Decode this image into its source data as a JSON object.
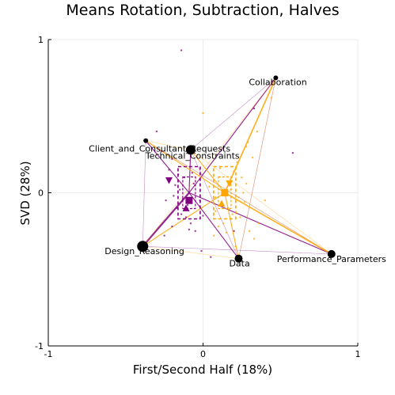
{
  "chart_data": {
    "type": "scatter",
    "title": "Means Rotation, Subtraction, Halves",
    "xlabel": "First/Second Half (18%)",
    "ylabel": "SVD (28%)",
    "xlim": [
      -1,
      1
    ],
    "ylim": [
      -1,
      1
    ],
    "xticks": [
      "-1",
      "0",
      "1"
    ],
    "yticks": [
      "-1",
      "0",
      "1"
    ],
    "grid": true,
    "legend": "none",
    "colors": {
      "first_half": "#800080",
      "second_half": "#FFA500",
      "nodes": "#000000"
    },
    "nodes": [
      {
        "label": "Collaboration",
        "x": 0.47,
        "y": 0.75
      },
      {
        "label": "Client_and_Consultant_Requests",
        "x": -0.37,
        "y": 0.34
      },
      {
        "label": "Technical_Constraints",
        "x": -0.08,
        "y": 0.28
      },
      {
        "label": "Design_Reasoning",
        "x": -0.39,
        "y": -0.35
      },
      {
        "label": "Data",
        "x": 0.23,
        "y": -0.43
      },
      {
        "label": "Performance_Parameters",
        "x": 0.83,
        "y": -0.4
      }
    ],
    "node_size": [
      3,
      3,
      6,
      7,
      5,
      5
    ],
    "series": [
      {
        "group": "first_half",
        "mean": [
          -0.09,
          0.0
        ],
        "markers": [
          {
            "shape": "triangle-down",
            "x": -0.22,
            "y": 0.08
          },
          {
            "shape": "triangle-up",
            "x": -0.11,
            "y": -0.1
          },
          {
            "shape": "square",
            "x": -0.09,
            "y": -0.05
          }
        ],
        "edges": [
          {
            "to": "Design_Reasoning",
            "weight": 3
          },
          {
            "to": "Technical_Constraints",
            "weight": 1
          },
          {
            "to": "Client_and_Consultant_Requests",
            "weight": 1
          },
          {
            "to": "Collaboration",
            "weight": 1
          },
          {
            "to": "Performance_Parameters",
            "weight": 1
          },
          {
            "to": "Data",
            "weight": 1
          }
        ],
        "points": [
          [
            -0.14,
            0.93
          ],
          [
            -0.3,
            0.4
          ],
          [
            -0.27,
            0.27
          ],
          [
            -0.2,
            0.22
          ],
          [
            -0.22,
            0.15
          ],
          [
            -0.16,
            0.12
          ],
          [
            -0.12,
            0.1
          ],
          [
            -0.18,
            0.05
          ],
          [
            -0.15,
            0.02
          ],
          [
            -0.19,
            -0.02
          ],
          [
            -0.13,
            -0.04
          ],
          [
            -0.1,
            -0.08
          ],
          [
            -0.17,
            -0.1
          ],
          [
            -0.14,
            -0.14
          ],
          [
            -0.11,
            -0.16
          ],
          [
            -0.08,
            -0.2
          ],
          [
            -0.2,
            -0.22
          ],
          [
            -0.25,
            -0.28
          ],
          [
            -0.05,
            -0.25
          ],
          [
            -0.02,
            -0.05
          ],
          [
            0.0,
            -0.15
          ],
          [
            -0.06,
            0.06
          ],
          [
            -0.24,
            -0.05
          ],
          [
            -0.09,
            -0.24
          ],
          [
            0.58,
            0.26
          ],
          [
            0.33,
            0.55
          ],
          [
            0.2,
            -0.25
          ],
          [
            -0.07,
            0.13
          ],
          [
            -0.01,
            -0.38
          ],
          [
            0.05,
            -0.42
          ]
        ]
      },
      {
        "group": "second_half",
        "mean": [
          0.14,
          0.0
        ],
        "markers": [
          {
            "shape": "triangle-down",
            "x": 0.17,
            "y": 0.06
          },
          {
            "shape": "triangle-up",
            "x": 0.12,
            "y": -0.07
          },
          {
            "shape": "square",
            "x": 0.14,
            "y": 0.0
          }
        ],
        "edges": [
          {
            "to": "Collaboration",
            "weight": 2
          },
          {
            "to": "Performance_Parameters",
            "weight": 2
          },
          {
            "to": "Data",
            "weight": 1
          },
          {
            "to": "Technical_Constraints",
            "weight": 1
          },
          {
            "to": "Design_Reasoning",
            "weight": 1
          },
          {
            "to": "Client_and_Consultant_Requests",
            "weight": 1
          }
        ],
        "points": [
          [
            0.0,
            0.52
          ],
          [
            0.28,
            0.3
          ],
          [
            0.32,
            0.23
          ],
          [
            0.22,
            0.2
          ],
          [
            0.2,
            0.14
          ],
          [
            0.25,
            0.1
          ],
          [
            0.28,
            0.06
          ],
          [
            0.18,
            0.02
          ],
          [
            0.23,
            -0.03
          ],
          [
            0.27,
            -0.06
          ],
          [
            0.16,
            -0.1
          ],
          [
            0.19,
            -0.14
          ],
          [
            0.24,
            -0.16
          ],
          [
            0.13,
            -0.2
          ],
          [
            0.1,
            -0.22
          ],
          [
            0.3,
            -0.25
          ],
          [
            0.36,
            -0.2
          ],
          [
            0.08,
            -0.12
          ],
          [
            0.04,
            0.04
          ],
          [
            0.33,
            -0.3
          ],
          [
            0.07,
            -0.28
          ],
          [
            0.4,
            -0.05
          ],
          [
            0.11,
            0.16
          ],
          [
            0.21,
            -0.35
          ],
          [
            0.35,
            0.4
          ],
          [
            0.44,
            0.62
          ],
          [
            0.08,
            -0.03
          ],
          [
            0.29,
            0.33
          ],
          [
            0.15,
            -0.26
          ],
          [
            0.26,
            0.0
          ]
        ]
      }
    ]
  }
}
